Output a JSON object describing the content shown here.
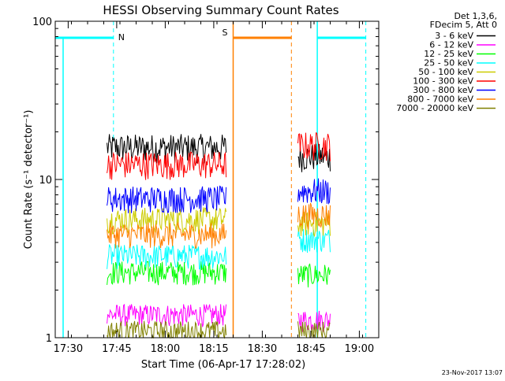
{
  "chart_data": {
    "type": "line",
    "title": "HESSI Observing Summary Count Rates",
    "xlabel": "Start Time (06-Apr-17 17:28:02)",
    "ylabel": "Count Rate (s⁻¹ detector⁻¹)",
    "y_scale": "log",
    "ylim": [
      1,
      100
    ],
    "xlim": [
      "17:26",
      "19:06"
    ],
    "x_tick_labels": [
      "17:30",
      "17:45",
      "18:00",
      "18:15",
      "18:30",
      "18:45",
      "19:00"
    ],
    "y_tick_labels": [
      "1",
      "10",
      "100"
    ],
    "legend_header": [
      "Det 1,3,6,",
      "FDecim 5, Att 0"
    ],
    "series": [
      {
        "name": "3 - 6 keV",
        "color": "#000000",
        "segments": [
          {
            "start": "17:42",
            "end": "18:19",
            "level": 16.0
          },
          {
            "start": "18:41",
            "end": "18:51",
            "level": 14.0
          }
        ]
      },
      {
        "name": "6 - 12 keV",
        "color": "#ff00ff",
        "segments": [
          {
            "start": "17:42",
            "end": "18:19",
            "level": 1.4
          },
          {
            "start": "18:41",
            "end": "18:51",
            "level": 1.3
          }
        ]
      },
      {
        "name": "12 - 25 keV",
        "color": "#00ff00",
        "segments": [
          {
            "start": "17:42",
            "end": "18:19",
            "level": 2.6
          },
          {
            "start": "18:41",
            "end": "18:51",
            "level": 2.5
          }
        ]
      },
      {
        "name": "25 - 50 keV",
        "color": "#00ffff",
        "segments": [
          {
            "start": "17:42",
            "end": "18:19",
            "level": 3.3
          },
          {
            "start": "18:41",
            "end": "18:51",
            "level": 4.2
          }
        ]
      },
      {
        "name": "50 - 100 keV",
        "color": "#cccc00",
        "segments": [
          {
            "start": "17:42",
            "end": "18:19",
            "level": 5.6
          },
          {
            "start": "18:41",
            "end": "18:51",
            "level": 5.3
          }
        ]
      },
      {
        "name": "100 - 300 keV",
        "color": "#ff0000",
        "segments": [
          {
            "start": "17:42",
            "end": "18:19",
            "level": 12.5
          },
          {
            "start": "18:41",
            "end": "18:51",
            "level": 16.5
          }
        ]
      },
      {
        "name": "300 - 800 keV",
        "color": "#0000ff",
        "segments": [
          {
            "start": "17:42",
            "end": "18:19",
            "level": 7.6
          },
          {
            "start": "18:41",
            "end": "18:51",
            "level": 8.5
          }
        ]
      },
      {
        "name": "800 - 7000 keV",
        "color": "#ff8000",
        "segments": [
          {
            "start": "17:42",
            "end": "18:19",
            "level": 4.5
          },
          {
            "start": "18:41",
            "end": "18:51",
            "level": 6.0
          }
        ]
      },
      {
        "name": "7000 - 20000 keV",
        "color": "#808000",
        "segments": [
          {
            "start": "17:42",
            "end": "18:19",
            "level": 1.1
          },
          {
            "start": "18:41",
            "end": "18:51",
            "level": 1.1
          }
        ]
      }
    ],
    "flags": [
      {
        "label": "N",
        "color": "#00ffff",
        "start": "17:26",
        "end": "17:44",
        "edges": [
          "18:47",
          "19:02"
        ],
        "edge_style": [
          "solid",
          "dashed"
        ]
      },
      {
        "label": "S",
        "color": "#ff8000",
        "start": "18:21",
        "end": "18:39",
        "edge_style": [
          "solid",
          "dashed"
        ]
      }
    ],
    "grid": false
  },
  "footer": {
    "timestamp": "23-Nov-2017 13:07"
  }
}
